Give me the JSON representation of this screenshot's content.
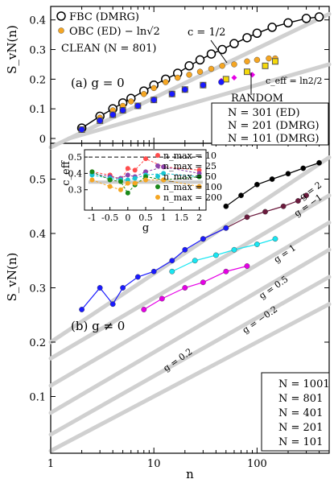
{
  "chart_data": [
    {
      "type": "line",
      "panel": "(a)",
      "title": "(a) g = 0",
      "xlabel": "n",
      "ylabel": "S_vN(n) (overlined)",
      "xscale": "log",
      "xlim": [
        1,
        500
      ],
      "ylim": [
        0,
        0.44
      ],
      "yticks": [
        "0",
        "0.1",
        "0.2",
        "0.3",
        "0.4"
      ],
      "legend_position": "top-left",
      "annotations": [
        "c = 1/2",
        "CLEAN (N = 801)",
        "RANDOM",
        "c_eff = ln2/2"
      ],
      "series": [
        {
          "name": "FBC (DMRG)",
          "marker": "open-circle",
          "color": "#000000",
          "x": [
            2,
            3,
            4,
            5,
            6,
            8,
            10,
            13,
            17,
            22,
            28,
            36,
            46,
            60,
            80,
            100,
            140,
            200,
            300,
            400
          ],
          "y": [
            0.035,
            0.075,
            0.1,
            0.12,
            0.135,
            0.16,
            0.18,
            0.2,
            0.22,
            0.245,
            0.265,
            0.285,
            0.3,
            0.32,
            0.34,
            0.355,
            0.375,
            0.39,
            0.405,
            0.41
          ]
        },
        {
          "name": "OBC (ED) − ln√2",
          "marker": "filled-circle",
          "color": "#f5a623",
          "x": [
            2,
            3,
            4,
            5,
            6,
            8,
            10,
            13,
            17,
            22,
            28,
            36,
            46,
            60,
            80,
            100,
            130,
            150
          ],
          "y": [
            0.03,
            0.07,
            0.095,
            0.11,
            0.125,
            0.15,
            0.17,
            0.19,
            0.205,
            0.215,
            0.225,
            0.235,
            0.245,
            0.25,
            0.26,
            0.265,
            0.27,
            0.27
          ]
        },
        {
          "name": "N = 301 (ED)",
          "marker": "open-square",
          "color": "#f5d90a",
          "x": [
            2,
            3,
            4,
            5,
            7,
            10,
            15,
            20,
            30,
            50,
            80,
            120,
            150
          ],
          "y": [
            0.03,
            0.06,
            0.08,
            0.095,
            0.11,
            0.13,
            0.15,
            0.165,
            0.18,
            0.2,
            0.225,
            0.245,
            0.26
          ]
        },
        {
          "name": "N = 201 (DMRG)",
          "marker": "diamond",
          "color": "#e600e6",
          "x": [
            2,
            3,
            4,
            5,
            7,
            10,
            15,
            20,
            30,
            45,
            60,
            90
          ],
          "y": [
            0.03,
            0.06,
            0.08,
            0.095,
            0.11,
            0.13,
            0.15,
            0.165,
            0.18,
            0.195,
            0.205,
            0.215
          ]
        },
        {
          "name": "N = 101 (DMRG)",
          "marker": "filled-circle",
          "color": "#1a1aff",
          "x": [
            2,
            3,
            4,
            5,
            7,
            10,
            15,
            20,
            30,
            45
          ],
          "y": [
            0.03,
            0.06,
            0.08,
            0.095,
            0.11,
            0.13,
            0.15,
            0.165,
            0.18,
            0.19
          ]
        }
      ]
    },
    {
      "type": "scatter",
      "panel": "(b)",
      "title": "(b) g ≠ 0",
      "xlabel": "n",
      "ylabel": "S_vN(n) (overlined)",
      "xscale": "log",
      "xlim": [
        1,
        500
      ],
      "ylim": [
        0,
        0.56
      ],
      "xticks": [
        "1",
        "10",
        "100"
      ],
      "yticks": [
        "0.1",
        "0.2",
        "0.3",
        "0.4",
        "0.5"
      ],
      "legend_position": "bottom-right",
      "annotations": [
        "g = 2",
        "g = 1",
        "g = 0.5",
        "g = −1",
        "g = 0.2",
        "g = −0.2"
      ],
      "series": [
        {
          "name": "N = 1001",
          "color": "#000000",
          "x": [
            50,
            70,
            100,
            140,
            200,
            280,
            400
          ],
          "y": [
            0.45,
            0.47,
            0.49,
            0.5,
            0.51,
            0.52,
            0.53
          ]
        },
        {
          "name": "N = 801",
          "color": "#6b1a3d",
          "x": [
            30,
            50,
            80,
            120,
            180,
            250,
            300
          ],
          "y": [
            0.39,
            0.41,
            0.43,
            0.44,
            0.45,
            0.46,
            0.47
          ]
        },
        {
          "name": "N = 401",
          "color": "#19e6f2",
          "x": [
            15,
            25,
            40,
            60,
            100,
            150
          ],
          "y": [
            0.33,
            0.35,
            0.36,
            0.37,
            0.38,
            0.39
          ]
        },
        {
          "name": "N = 201",
          "color": "#e600e6",
          "x": [
            8,
            12,
            20,
            30,
            50,
            80
          ],
          "y": [
            0.26,
            0.28,
            0.3,
            0.31,
            0.33,
            0.34
          ]
        },
        {
          "name": "N = 101",
          "color": "#1a1aff",
          "x": [
            2,
            3,
            4,
            5,
            7,
            10,
            15,
            20,
            30,
            50
          ],
          "y": [
            0.26,
            0.3,
            0.27,
            0.3,
            0.32,
            0.33,
            0.35,
            0.37,
            0.39,
            0.41
          ]
        }
      ]
    },
    {
      "type": "line",
      "panel": "inset",
      "xlabel": "g",
      "ylabel": "c_eff",
      "xlim": [
        -1.1,
        2.1
      ],
      "ylim": [
        0.2,
        0.53
      ],
      "xticks": [
        "-1",
        "-0.5",
        "0",
        "0.5",
        "1",
        "1.5",
        "2"
      ],
      "yticks": [
        "0.3",
        "0.4",
        "0.5"
      ],
      "legend_position": "right",
      "g": [
        -1,
        -0.5,
        -0.2,
        0,
        0.2,
        0.5,
        1,
        2
      ],
      "series": [
        {
          "name": "n_max = 10",
          "color": "#ff4d4d",
          "values": [
            0.41,
            0.39,
            0.36,
            0.43,
            0.42,
            0.49,
            0.44,
            0.42
          ]
        },
        {
          "name": "n_max = 25",
          "color": "#8e44ad",
          "values": [
            0.4,
            0.38,
            0.37,
            0.39,
            0.38,
            0.41,
            0.44,
            0.4
          ]
        },
        {
          "name": "n_max = 50",
          "color": "#19c6d2",
          "values": [
            0.39,
            0.37,
            0.36,
            0.36,
            0.37,
            0.39,
            0.4,
            0.38
          ]
        },
        {
          "name": "n_max = 100",
          "color": "#1a8a1a",
          "values": [
            0.41,
            0.36,
            0.35,
            0.28,
            0.33,
            0.38,
            0.36,
            0.38
          ]
        },
        {
          "name": "n_max = 200",
          "color": "#f5a623",
          "values": [
            0.36,
            0.32,
            0.3,
            0.34,
            0.34,
            0.36,
            0.36,
            0.32
          ]
        }
      ]
    }
  ]
}
